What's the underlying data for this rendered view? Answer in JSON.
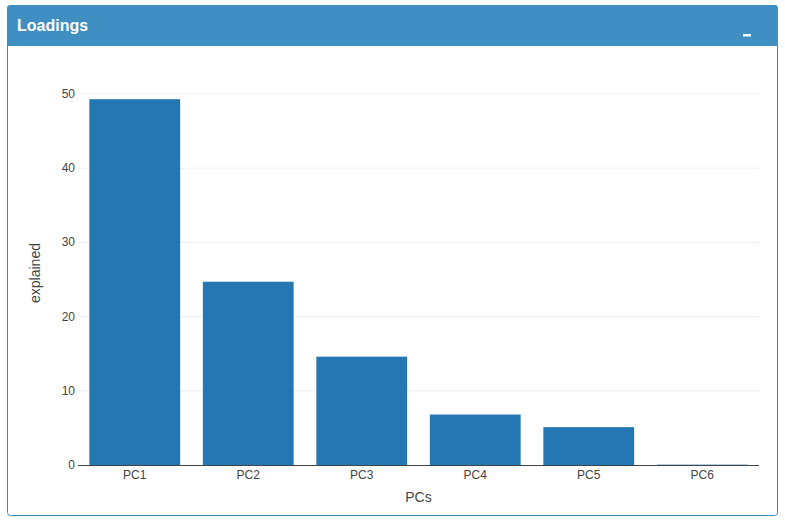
{
  "chart_data": {
    "type": "bar",
    "title": "Loadings",
    "categories": [
      "PC1",
      "PC2",
      "PC3",
      "PC4",
      "PC5",
      "PC6"
    ],
    "values": [
      49.3,
      24.7,
      14.6,
      6.8,
      5.1,
      0.05
    ],
    "color": "#2577b3",
    "x_label": "PCs",
    "y_label": "explained",
    "ylim": [
      0,
      50
    ],
    "yticks": [
      0,
      10,
      20,
      30,
      40,
      50
    ],
    "grid": true
  }
}
